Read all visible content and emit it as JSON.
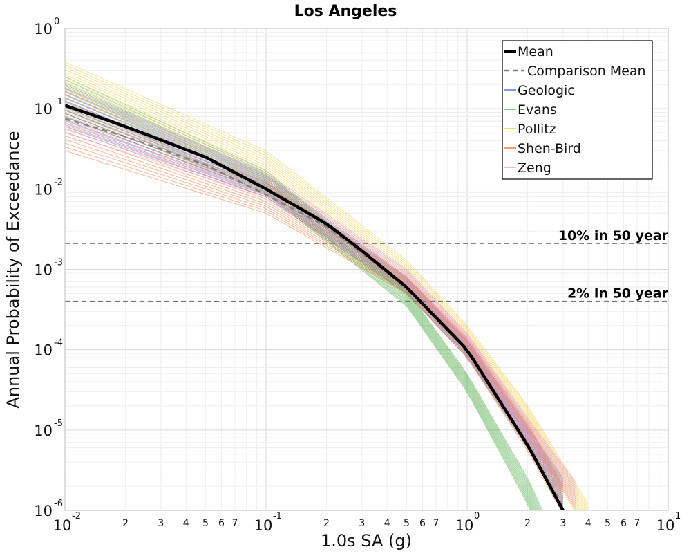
{
  "chart_data": {
    "type": "line",
    "title": "Los Angeles",
    "xlabel": "1.0s SA (g)",
    "ylabel": "Annual Probability of Exceedance",
    "xscale": "log",
    "yscale": "log",
    "xlim": [
      0.01,
      10
    ],
    "ylim": [
      1e-06,
      1
    ],
    "grid": true,
    "legend_position": "top-right",
    "x_ticks_major": [
      {
        "value": 0.01,
        "base": "10",
        "exp": "-2"
      },
      {
        "value": 0.1,
        "base": "10",
        "exp": "-1"
      },
      {
        "value": 1,
        "base": "10",
        "exp": "0"
      },
      {
        "value": 10,
        "base": "10",
        "exp": "1"
      }
    ],
    "x_ticks_minor_labels": [
      "2",
      "3",
      "4",
      "5",
      "6",
      "7"
    ],
    "y_ticks_major": [
      {
        "value": 1,
        "base": "10",
        "exp": "0"
      },
      {
        "value": 0.1,
        "base": "10",
        "exp": "-1"
      },
      {
        "value": 0.01,
        "base": "10",
        "exp": "-2"
      },
      {
        "value": 0.001,
        "base": "10",
        "exp": "-3"
      },
      {
        "value": 0.0001,
        "base": "10",
        "exp": "-4"
      },
      {
        "value": 1e-05,
        "base": "10",
        "exp": "-5"
      },
      {
        "value": 1e-06,
        "base": "10",
        "exp": "-6"
      }
    ],
    "reference_lines": [
      {
        "label": "10% in 50 year",
        "y": 0.0021
      },
      {
        "label": "2% in 50 year",
        "y": 0.0004
      }
    ],
    "legend": [
      {
        "label": "Mean",
        "color": "#000000",
        "style": "solid-thick"
      },
      {
        "label": "Comparison Mean",
        "color": "#808080",
        "style": "dashed"
      },
      {
        "label": "Geologic",
        "color": "#3a5fcd",
        "style": "solid"
      },
      {
        "label": "Evans",
        "color": "#3fa535",
        "style": "solid"
      },
      {
        "label": "Pollitz",
        "color": "#f0c419",
        "style": "solid"
      },
      {
        "label": "Shen-Bird",
        "color": "#e8641e",
        "style": "solid"
      },
      {
        "label": "Zeng",
        "color": "#e088d0",
        "style": "solid"
      }
    ],
    "mean_curve": {
      "name": "Mean",
      "x": [
        0.01,
        0.02,
        0.05,
        0.1,
        0.2,
        0.3,
        0.5,
        1.0,
        2.0,
        3.0
      ],
      "y": [
        0.11,
        0.06,
        0.025,
        0.01,
        0.0037,
        0.0017,
        0.0006,
        0.0001,
        6.5e-06,
        1e-06
      ]
    },
    "comparison_mean_curve": {
      "name": "Comparison Mean",
      "x": [
        0.01,
        0.02,
        0.05,
        0.1,
        0.2,
        0.3,
        0.5,
        1.0,
        2.0,
        3.0
      ],
      "y": [
        0.075,
        0.045,
        0.02,
        0.0085,
        0.0034,
        0.0016,
        0.00058,
        0.0001,
        6.8e-06,
        1.1e-06
      ]
    },
    "series_bands": [
      {
        "name": "Geologic",
        "color": "#3a5fcd",
        "x": [
          0.01,
          0.1,
          0.5,
          1.0,
          2.0,
          3.0
        ],
        "y_low": [
          0.06,
          0.008,
          0.0005,
          8e-05,
          6e-06,
          1.2e-06
        ],
        "y_high": [
          0.2,
          0.015,
          0.0008,
          0.00013,
          1.1e-05,
          2.5e-06
        ]
      },
      {
        "name": "Evans",
        "color": "#3fa535",
        "x": [
          0.01,
          0.1,
          0.5,
          1.0,
          2.0,
          2.7
        ],
        "y_low": [
          0.08,
          0.009,
          0.00035,
          3e-05,
          1.2e-06,
          2e-07
        ],
        "y_high": [
          0.25,
          0.017,
          0.00055,
          5e-05,
          2.5e-06,
          5e-07
        ]
      },
      {
        "name": "Pollitz",
        "color": "#f0c419",
        "x": [
          0.01,
          0.1,
          0.5,
          1.0,
          2.0,
          4.0
        ],
        "y_low": [
          0.15,
          0.012,
          0.0006,
          0.0001,
          1e-05,
          5e-07
        ],
        "y_high": [
          0.38,
          0.03,
          0.0013,
          0.0002,
          2e-05,
          1.2e-06
        ]
      },
      {
        "name": "Shen-Bird",
        "color": "#e8641e",
        "x": [
          0.01,
          0.1,
          0.5,
          1.0,
          2.0,
          3.0
        ],
        "y_low": [
          0.03,
          0.005,
          0.0005,
          8e-05,
          5.5e-06,
          9e-07
        ],
        "y_high": [
          0.12,
          0.012,
          0.0008,
          0.00014,
          1.2e-05,
          2e-06
        ]
      },
      {
        "name": "Zeng",
        "color": "#e088d0",
        "x": [
          0.01,
          0.1,
          0.5,
          1.0,
          2.0,
          3.5
        ],
        "y_low": [
          0.05,
          0.008,
          0.0006,
          0.0001,
          8e-06,
          1e-06
        ],
        "y_high": [
          0.18,
          0.016,
          0.001,
          0.00016,
          1.4e-05,
          2.2e-06
        ]
      }
    ]
  }
}
